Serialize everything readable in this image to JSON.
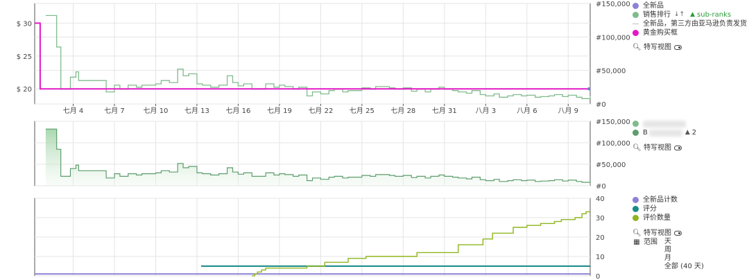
{
  "colors": {
    "new_price": "#6f80d6",
    "sales_rank": "#80bb8c",
    "buybox": "#e418c6",
    "rating": "#1a8a8a",
    "review_count": "#8db51d",
    "offer_count": "#8b82d6",
    "grid": "#e4e4e4",
    "axis": "#555555"
  },
  "legend1": {
    "new": "全新品",
    "sales_rank": "销售排行",
    "subranks": "sub-ranks",
    "third_party": "全新品，第三方由亚马逊负责发货",
    "buybox": "黄金购买框",
    "close_up": "特写视图"
  },
  "legend2": {
    "row1": "",
    "row2_prefix": "B",
    "row2_count": "2",
    "close_up": "特写视图"
  },
  "legend3": {
    "offer_count": "全新品计数",
    "rating": "评分",
    "review_count": "评价数量",
    "close_up": "特写视图",
    "range_label": "范围",
    "range_day": "天",
    "range_week": "周",
    "range_month": "月",
    "range_all": "全部 (40 天)"
  },
  "chart_data": [
    {
      "type": "line",
      "title": "",
      "x_tick_labels": [
        "七月 4",
        "七月 7",
        "七月 10",
        "七月 13",
        "七月 16",
        "七月 19",
        "七月 22",
        "七月 25",
        "七月 28",
        "七月 31",
        "八月 3",
        "八月 6",
        "八月 9"
      ],
      "x_tick_days": [
        4,
        7,
        10,
        13,
        16,
        19,
        22,
        25,
        28,
        31,
        34,
        37,
        40
      ],
      "xlim": [
        1.2,
        41.6
      ],
      "y_left_ticks": [
        "$ 20",
        "$ 25",
        "$ 30"
      ],
      "y_left_values": [
        20,
        25,
        30
      ],
      "ylim_left": [
        17.7,
        33
      ],
      "y_right_ticks": [
        "#0",
        "#50,000",
        "#100,000",
        "#150,000"
      ],
      "y_right_values": [
        0,
        50000,
        100000,
        150000
      ],
      "ylim_right": [
        0,
        150000
      ],
      "series": [
        {
          "name": "黄金购买框",
          "axis": "left",
          "x": [
            1.2,
            1.6,
            1.6,
            41.6
          ],
          "y": [
            30,
            30,
            20,
            20
          ]
        },
        {
          "name": "全新品",
          "axis": "left",
          "x": [
            41.5
          ],
          "y": [
            20
          ]
        },
        {
          "name": "销售排行",
          "axis": "right",
          "x": [
            2.0,
            2.6,
            2.8,
            3.1,
            3.2,
            3.8,
            4.2,
            4.4,
            6.0,
            6.4,
            7.0,
            7.4,
            8.0,
            8.6,
            9.0,
            10.0,
            10.4,
            11.0,
            11.6,
            12.0,
            12.4,
            13.0,
            13.4,
            14.0,
            14.6,
            15.2,
            15.6,
            16.0,
            16.4,
            17.0,
            18.0,
            18.6,
            19.0,
            19.4,
            20.0,
            20.4,
            21.0,
            21.4,
            22.0,
            22.6,
            23.0,
            23.6,
            24.0,
            25.0,
            25.6,
            26.0,
            27.0,
            27.4,
            28.0,
            28.6,
            29.0,
            29.6,
            30.0,
            30.6,
            31.0,
            31.6,
            32.0,
            32.6,
            33.0,
            33.6,
            34.0,
            34.6,
            35.0,
            35.6,
            36.0,
            36.6,
            37.0,
            37.6,
            38.0,
            38.6,
            39.0,
            39.6,
            40.0,
            40.6,
            41.0,
            41.6
          ],
          "y": [
            132000,
            132000,
            85000,
            22000,
            22000,
            40000,
            48000,
            35000,
            35000,
            18000,
            28000,
            22000,
            28000,
            25000,
            28000,
            30000,
            35000,
            32000,
            52000,
            42000,
            45000,
            30000,
            28000,
            25000,
            28000,
            42000,
            32000,
            27000,
            30000,
            22000,
            30000,
            25000,
            28000,
            26000,
            22000,
            25000,
            12000,
            18000,
            15000,
            20000,
            22000,
            18000,
            20000,
            24000,
            22000,
            26000,
            24000,
            22000,
            24000,
            19000,
            22000,
            18000,
            22000,
            25000,
            22000,
            20000,
            18000,
            16000,
            20000,
            14000,
            12000,
            15000,
            10000,
            12000,
            14000,
            12000,
            13000,
            10000,
            11000,
            12000,
            14000,
            11000,
            13000,
            10000,
            8000,
            12000
          ]
        }
      ]
    },
    {
      "type": "area",
      "title": "",
      "xlim": [
        1.2,
        41.6
      ],
      "y_right_ticks": [
        "#0",
        "#50,000",
        "#100,000",
        "#150,000"
      ],
      "y_right_values": [
        0,
        50000,
        100000,
        150000
      ],
      "ylim_right": [
        0,
        150000
      ],
      "series": [
        {
          "name": "",
          "x": [
            2.0,
            2.6,
            2.8,
            3.1,
            3.2,
            3.8,
            4.2,
            4.4,
            6.0,
            6.4,
            7.0,
            7.4,
            8.0,
            8.6,
            9.0,
            10.0,
            10.4,
            11.0,
            11.6,
            12.0,
            12.4,
            13.0,
            13.4,
            14.0,
            14.6,
            15.2,
            15.6,
            16.0,
            16.4,
            17.0,
            18.0,
            18.6,
            19.0,
            19.4,
            20.0,
            20.4,
            21.0,
            21.4,
            22.0,
            22.6,
            23.0,
            23.6,
            24.0,
            25.0,
            25.6,
            26.0,
            27.0,
            27.4,
            28.0,
            28.6,
            29.0,
            29.6,
            30.0,
            30.6,
            31.0,
            31.6,
            32.0,
            32.6,
            33.0,
            33.6,
            34.0,
            34.6,
            35.0,
            35.6,
            36.0,
            36.6,
            37.0,
            37.6,
            38.0,
            38.6,
            39.0,
            39.6,
            40.0,
            40.6,
            41.0,
            41.6
          ],
          "y": [
            132000,
            132000,
            85000,
            22000,
            22000,
            40000,
            48000,
            35000,
            35000,
            18000,
            28000,
            22000,
            28000,
            25000,
            28000,
            30000,
            35000,
            32000,
            52000,
            42000,
            45000,
            30000,
            28000,
            25000,
            28000,
            42000,
            32000,
            27000,
            30000,
            22000,
            30000,
            25000,
            28000,
            26000,
            22000,
            25000,
            12000,
            18000,
            15000,
            20000,
            22000,
            18000,
            20000,
            24000,
            22000,
            26000,
            24000,
            22000,
            24000,
            19000,
            22000,
            18000,
            22000,
            25000,
            22000,
            20000,
            18000,
            16000,
            20000,
            14000,
            12000,
            15000,
            10000,
            12000,
            14000,
            12000,
            13000,
            10000,
            11000,
            12000,
            14000,
            11000,
            13000,
            10000,
            8000,
            12000
          ]
        }
      ]
    },
    {
      "type": "line",
      "title": "",
      "xlim": [
        1.2,
        41.6
      ],
      "y_right_ticks": [
        "0",
        "10",
        "20",
        "30",
        "40"
      ],
      "y_right_values": [
        0,
        10,
        20,
        30,
        40
      ],
      "ylim_right": [
        0,
        40
      ],
      "series": [
        {
          "name": "全新品计数",
          "step": "post",
          "x": [
            1.2,
            41.6
          ],
          "y": [
            1,
            1
          ]
        },
        {
          "name": "评分",
          "step": "post",
          "x": [
            13.3,
            41.6
          ],
          "y": [
            5,
            5
          ]
        },
        {
          "name": "评价数量",
          "step": "post",
          "x": [
            17.0,
            17.2,
            17.4,
            17.7,
            18.0,
            21.0,
            22.3,
            24.0,
            25.3,
            29.0,
            32.0,
            33.8,
            34.5,
            36.0,
            37.0,
            38.0,
            39.0,
            39.5,
            40.0,
            40.5,
            41.0,
            41.3,
            41.6
          ],
          "y": [
            0,
            1,
            2,
            3,
            4,
            5,
            7,
            9,
            10,
            12,
            16,
            19,
            22,
            25,
            26,
            27,
            28,
            29,
            29,
            30,
            32,
            33,
            33
          ]
        }
      ]
    }
  ]
}
